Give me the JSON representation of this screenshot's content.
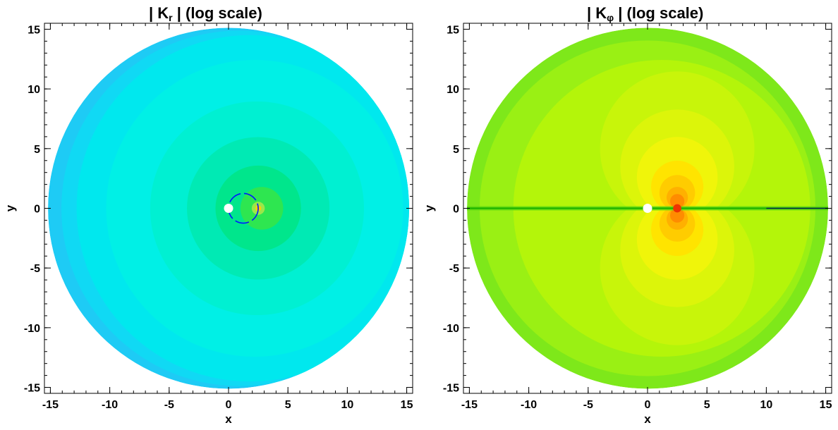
{
  "chart_data": [
    {
      "type": "heatmap",
      "title": {
        "prefix": "| K",
        "subscript": "r",
        "suffix": " | (log scale)"
      },
      "xlabel": "x",
      "ylabel": "y",
      "xlim": [
        -15.5,
        15.5
      ],
      "ylim": [
        -15.5,
        15.5
      ],
      "xticks": [
        -15,
        -10,
        -5,
        0,
        5,
        10,
        15
      ],
      "yticks": [
        -15,
        -10,
        -5,
        0,
        5,
        10,
        15
      ],
      "xtick_labels": [
        "-15",
        "-10",
        "-5",
        "0",
        "5",
        "10",
        "15"
      ],
      "ytick_labels": [
        "-15",
        "-10",
        "-5",
        "0",
        "5",
        "10",
        "15"
      ],
      "domain_radius": 15.2,
      "source_point": [
        0,
        0
      ],
      "field_peak": [
        2.5,
        0
      ],
      "ring": {
        "center": [
          1.25,
          0
        ],
        "radius": 1.25
      },
      "colors": {
        "outer": "#1ecbf5",
        "mid": "#00f0e6",
        "inner": "#00e68c",
        "core": "#2ee650",
        "peak": "#ffd000"
      }
    },
    {
      "type": "heatmap",
      "title": {
        "prefix": "| K",
        "subscript": "φ",
        "suffix": " | (log scale)"
      },
      "xlabel": "x",
      "ylabel": "y",
      "xlim": [
        -15.5,
        15.5
      ],
      "ylim": [
        -15.5,
        15.5
      ],
      "xticks": [
        -15,
        -10,
        -5,
        0,
        5,
        10,
        15
      ],
      "yticks": [
        -15,
        -10,
        -5,
        0,
        5,
        10,
        15
      ],
      "xtick_labels": [
        "-15",
        "-10",
        "-5",
        "0",
        "5",
        "10",
        "15"
      ],
      "ytick_labels": [
        "-15",
        "-10",
        "-5",
        "0",
        "5",
        "10",
        "15"
      ],
      "domain_radius": 15.2,
      "source_point": [
        0,
        0
      ],
      "field_peak": [
        2.5,
        0
      ],
      "colors": {
        "outer": "#7ee81a",
        "mid": "#b4f50a",
        "inner": "#f0f50a",
        "core": "#ffb000",
        "peak": "#ee3300",
        "axis_line": "#1eb400"
      }
    }
  ]
}
